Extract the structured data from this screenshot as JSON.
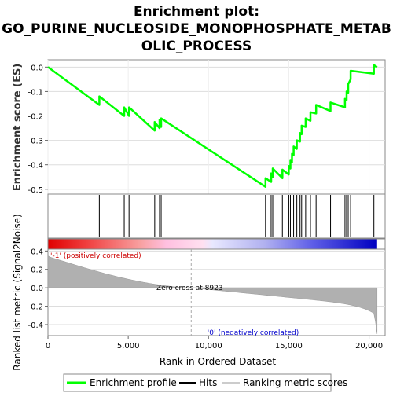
{
  "chart_data": {
    "type": "line",
    "title": [
      "Enrichment plot:",
      "GO_PURINE_NUCLEOSIDE_MONOPHOSPHATE_METAB",
      "OLIC_PROCESS"
    ],
    "es_panel": {
      "ylabel": "Enrichment score (ES)",
      "ylim": [
        -0.52,
        0.03
      ],
      "yticks": [
        "0.0",
        "-0.1",
        "-0.2",
        "-0.3",
        "-0.4",
        "-0.5"
      ],
      "ytick_values": [
        0.0,
        -0.1,
        -0.2,
        -0.3,
        -0.4,
        -0.5
      ],
      "series_name": "Enrichment profile",
      "color": "#00ff00",
      "hits": [
        3200,
        4750,
        5050,
        6650,
        6950,
        7050,
        13550,
        13900,
        14000,
        14600,
        15000,
        15100,
        15200,
        15300,
        15500,
        15700,
        15800,
        16050,
        16350,
        16700,
        17600,
        18500,
        18600,
        18700,
        18850,
        20300
      ],
      "es_at_hits": [
        -0.12,
        -0.165,
        -0.165,
        -0.225,
        -0.215,
        -0.21,
        -0.455,
        -0.435,
        -0.415,
        -0.42,
        -0.405,
        -0.38,
        -0.355,
        -0.325,
        -0.3,
        -0.27,
        -0.24,
        -0.21,
        -0.185,
        -0.155,
        -0.145,
        -0.13,
        -0.1,
        -0.07,
        -0.015,
        0.008
      ],
      "end_value": 0.0
    },
    "rank_panel": {
      "ylabel": "Ranked list metric (Signal2Noise)",
      "xlabel": "Rank in Ordered Dataset",
      "ylim": [
        -0.52,
        0.42
      ],
      "yticks": [
        "0.4",
        "0.2",
        "0.0",
        "-0.2",
        "-0.4"
      ],
      "ytick_values": [
        0.4,
        0.2,
        0.0,
        -0.2,
        -0.4
      ],
      "xlim": [
        0,
        21000
      ],
      "xticks": [
        "0",
        "5,000",
        "10,000",
        "15,000",
        "20,000"
      ],
      "xtick_values": [
        0,
        5000,
        10000,
        15000,
        20000
      ],
      "n_genes": 20500,
      "zero_cross": 8923,
      "zero_cross_label": "Zero cross at 8923",
      "pos_label": "'-1' (positively correlated)",
      "neg_label": "'0' (negatively correlated)",
      "metric_start": 0.35,
      "metric_end": -0.5,
      "fill_color": "#b0b0b0"
    },
    "legend": {
      "placement": "bottom",
      "items": [
        {
          "label": "Enrichment profile",
          "color": "#00ff00"
        },
        {
          "label": "Hits",
          "color": "#000000"
        },
        {
          "label": "Ranking metric scores",
          "color": "#cccccc"
        }
      ]
    }
  }
}
